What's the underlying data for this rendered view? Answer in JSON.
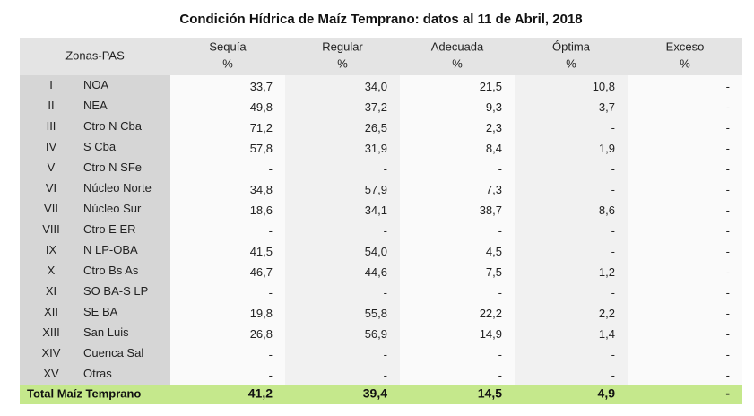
{
  "title": "Condición Hídrica de Maíz Temprano: datos al 11 de Abril, 2018",
  "table": {
    "zone_header": "Zonas-PAS",
    "columns": [
      {
        "name": "Sequía",
        "unit": "%"
      },
      {
        "name": "Regular",
        "unit": "%"
      },
      {
        "name": "Adecuada",
        "unit": "%"
      },
      {
        "name": "Óptima",
        "unit": "%"
      },
      {
        "name": "Exceso",
        "unit": "%"
      }
    ],
    "rows": [
      {
        "id": "I",
        "zone": "NOA",
        "values": [
          "33,7",
          "34,0",
          "21,5",
          "10,8",
          "-"
        ]
      },
      {
        "id": "II",
        "zone": "NEA",
        "values": [
          "49,8",
          "37,2",
          "9,3",
          "3,7",
          "-"
        ]
      },
      {
        "id": "III",
        "zone": "Ctro N Cba",
        "values": [
          "71,2",
          "26,5",
          "2,3",
          "-",
          "-"
        ]
      },
      {
        "id": "IV",
        "zone": "S Cba",
        "values": [
          "57,8",
          "31,9",
          "8,4",
          "1,9",
          "-"
        ]
      },
      {
        "id": "V",
        "zone": "Ctro N SFe",
        "values": [
          "-",
          "-",
          "-",
          "-",
          "-"
        ]
      },
      {
        "id": "VI",
        "zone": "Núcleo Norte",
        "values": [
          "34,8",
          "57,9",
          "7,3",
          "-",
          "-"
        ]
      },
      {
        "id": "VII",
        "zone": "Núcleo Sur",
        "values": [
          "18,6",
          "34,1",
          "38,7",
          "8,6",
          "-"
        ]
      },
      {
        "id": "VIII",
        "zone": "Ctro E ER",
        "values": [
          "-",
          "-",
          "-",
          "-",
          "-"
        ]
      },
      {
        "id": "IX",
        "zone": "N LP-OBA",
        "values": [
          "41,5",
          "54,0",
          "4,5",
          "-",
          "-"
        ]
      },
      {
        "id": "X",
        "zone": "Ctro Bs As",
        "values": [
          "46,7",
          "44,6",
          "7,5",
          "1,2",
          "-"
        ]
      },
      {
        "id": "XI",
        "zone": "SO BA-S LP",
        "values": [
          "-",
          "-",
          "-",
          "-",
          "-"
        ]
      },
      {
        "id": "XII",
        "zone": "SE BA",
        "values": [
          "19,8",
          "55,8",
          "22,2",
          "2,2",
          "-"
        ]
      },
      {
        "id": "XIII",
        "zone": "San Luis",
        "values": [
          "26,8",
          "56,9",
          "14,9",
          "1,4",
          "-"
        ]
      },
      {
        "id": "XIV",
        "zone": "Cuenca Sal",
        "values": [
          "-",
          "-",
          "-",
          "-",
          "-"
        ]
      },
      {
        "id": "XV",
        "zone": "Otras",
        "values": [
          "-",
          "-",
          "-",
          "-",
          "-"
        ]
      }
    ],
    "total": {
      "label": "Total Maíz Temprano",
      "values": [
        "41,2",
        "39,4",
        "14,5",
        "4,9",
        "-"
      ]
    }
  }
}
